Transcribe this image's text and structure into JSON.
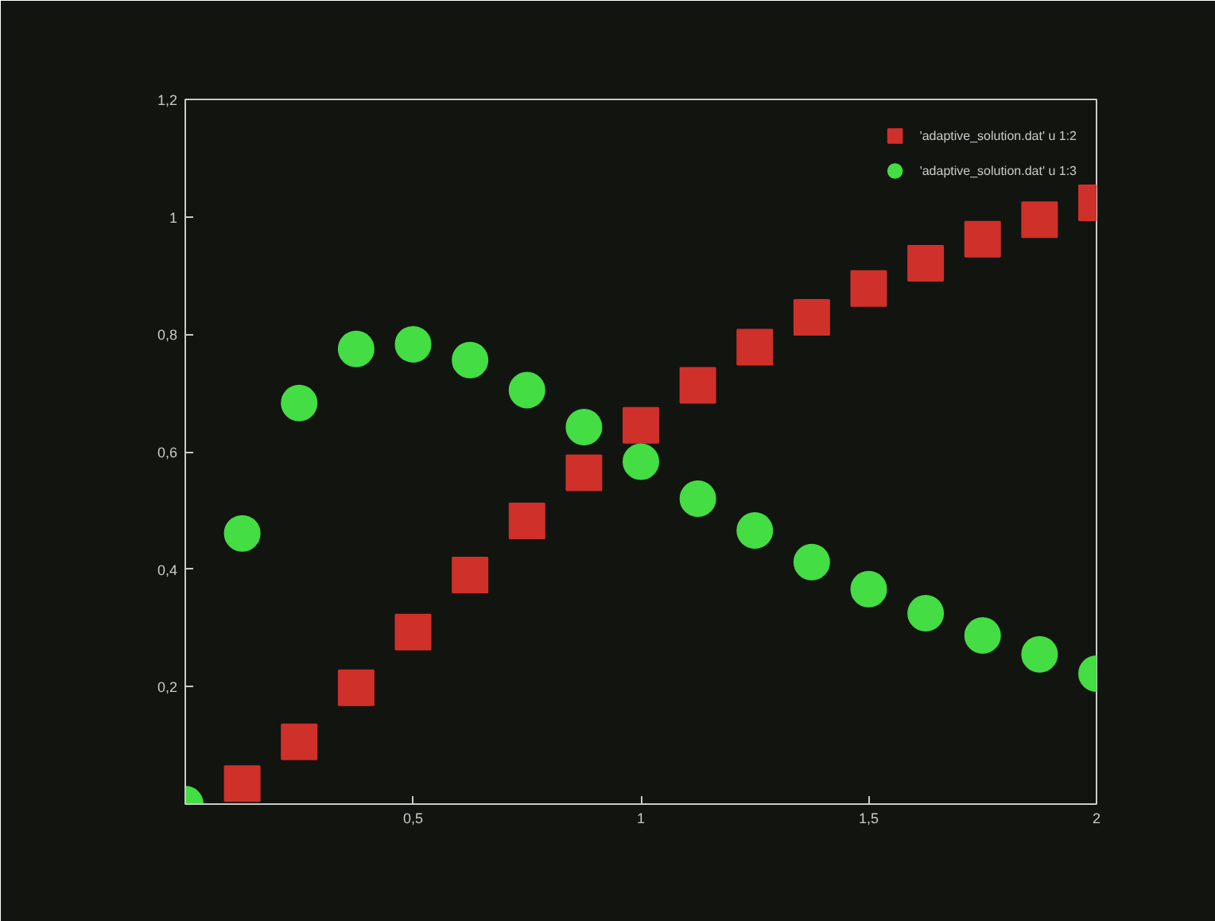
{
  "chart_data": {
    "type": "scatter",
    "x": [
      0,
      0.125,
      0.25,
      0.375,
      0.5,
      0.625,
      0.75,
      0.875,
      1,
      1.125,
      1.25,
      1.375,
      1.5,
      1.625,
      1.75,
      1.875,
      2
    ],
    "series": [
      {
        "name": "'adaptive_solution.dat' u 1:2",
        "color": "#d0302a",
        "marker": "square",
        "values": [
          null,
          0.035,
          0.106,
          0.198,
          0.293,
          0.39,
          0.482,
          0.564,
          0.645,
          0.713,
          0.778,
          0.829,
          0.878,
          0.921,
          0.962,
          0.995,
          1.024
        ]
      },
      {
        "name": "'adaptive_solution.dat' u 1:3",
        "color": "#44dd44",
        "marker": "circle",
        "values": [
          0,
          0.461,
          0.683,
          0.775,
          0.783,
          0.756,
          0.705,
          0.642,
          0.583,
          0.52,
          0.466,
          0.412,
          0.366,
          0.325,
          0.287,
          0.255,
          0.222
        ]
      }
    ],
    "xlim": [
      0,
      2
    ],
    "ylim": [
      0,
      1.2
    ],
    "xticks": [
      {
        "value": 0.5,
        "label": "0,5"
      },
      1,
      {
        "value": 1.5,
        "label": "1,5"
      },
      2
    ],
    "yticks": [
      {
        "value": 0.2,
        "label": "0,2"
      },
      {
        "value": 0.4,
        "label": "0,4"
      },
      {
        "value": 0.6,
        "label": "0,6"
      },
      {
        "value": 0.8,
        "label": "0,8"
      },
      1,
      {
        "value": 1.2,
        "label": "1,2"
      }
    ],
    "grid": false,
    "legend": "top right"
  }
}
